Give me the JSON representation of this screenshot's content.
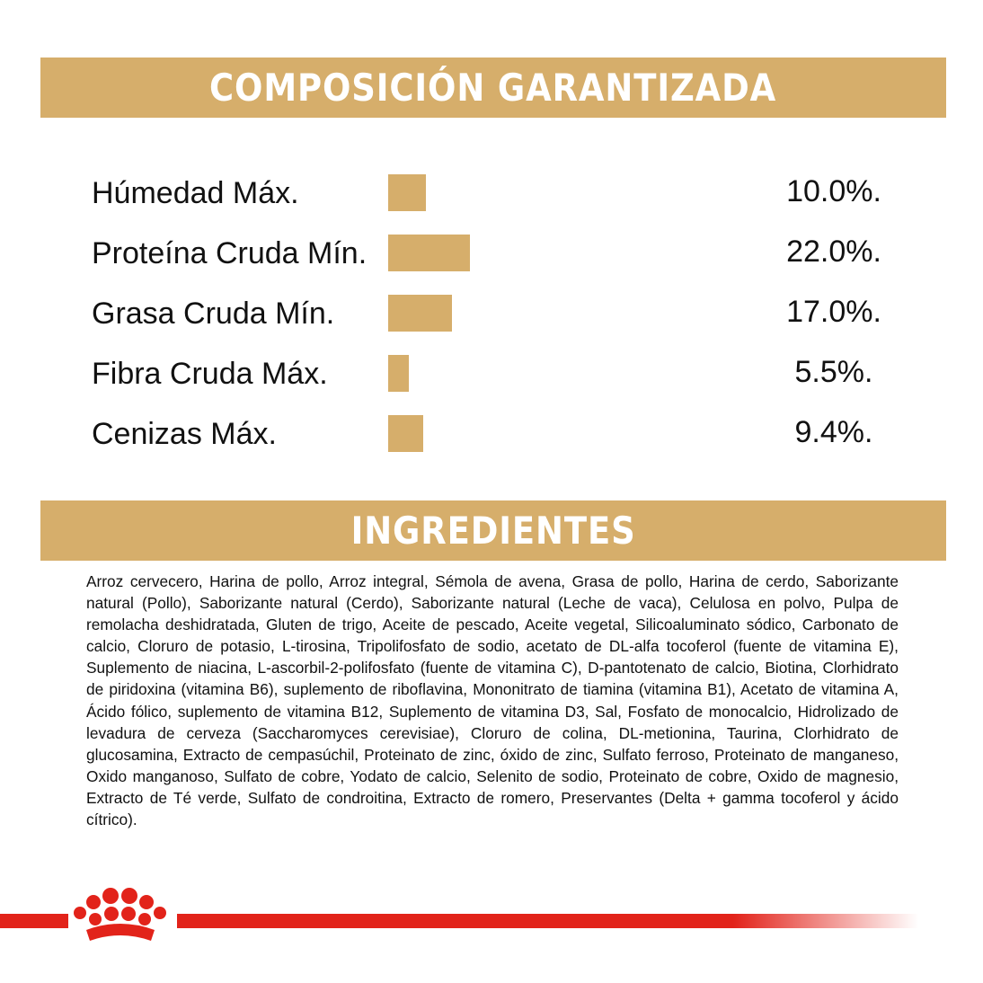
{
  "header": {
    "title": "COMPOSICIÓN GARANTIZADA"
  },
  "chart_data": {
    "type": "bar",
    "orientation": "horizontal",
    "color": "#d6ae6b",
    "categories": [
      "Húmedad Máx.",
      "Proteína Cruda Mín.",
      "Grasa Cruda Mín.",
      "Fibra Cruda Máx.",
      "Cenizas Máx."
    ],
    "values": [
      10.0,
      22.0,
      17.0,
      5.5,
      9.4
    ],
    "value_labels": [
      "10.0%.",
      "22.0%.",
      "17.0%.",
      "5.5%.",
      "9.4%."
    ]
  },
  "ingredients": {
    "title": "INGREDIENTES",
    "text": "Arroz cervecero, Harina de pollo, Arroz integral, Sémola de avena, Grasa de pollo, Harina de cerdo, Saborizante natural (Pollo), Saborizante natural (Cerdo), Saborizante natural (Leche de vaca), Celulosa en polvo, Pulpa de remolacha deshidratada, Gluten de trigo, Aceite de pescado, Aceite vegetal, Silicoaluminato sódico, Carbonato de calcio, Cloruro de potasio, L-tirosina, Tripolifosfato de sodio, acetato de DL-alfa tocoferol (fuente de vitamina E), Suplemento de niacina, L-ascorbil-2-polifosfato (fuente de vitamina C), D-pantotenato de calcio, Biotina, Clorhidrato de piridoxina (vitamina B6), suplemento de riboflavina, Mononitrato de tiamina (vitamina B1), Acetato de vitamina A, Ácido fólico, suplemento de vitamina B12, Suplemento de vitamina D3, Sal, Fosfato de monocalcio, Hidrolizado de levadura de cerveza (Saccharomyces cerevisiae), Cloruro de colina, DL-metionina, Taurina, Clorhidrato de glucosamina, Extracto de cempasúchil, Proteinato de zinc, óxido de zinc, Sulfato ferroso, Proteinato de manganeso, Oxido manganoso, Sulfato de cobre, Yodato de calcio, Selenito de sodio, Proteinato de cobre, Oxido de magnesio, Extracto de Té verde, Sulfato de condroitina, Extracto de romero, Preservantes (Delta + gamma tocoferol y ácido cítrico)."
  }
}
